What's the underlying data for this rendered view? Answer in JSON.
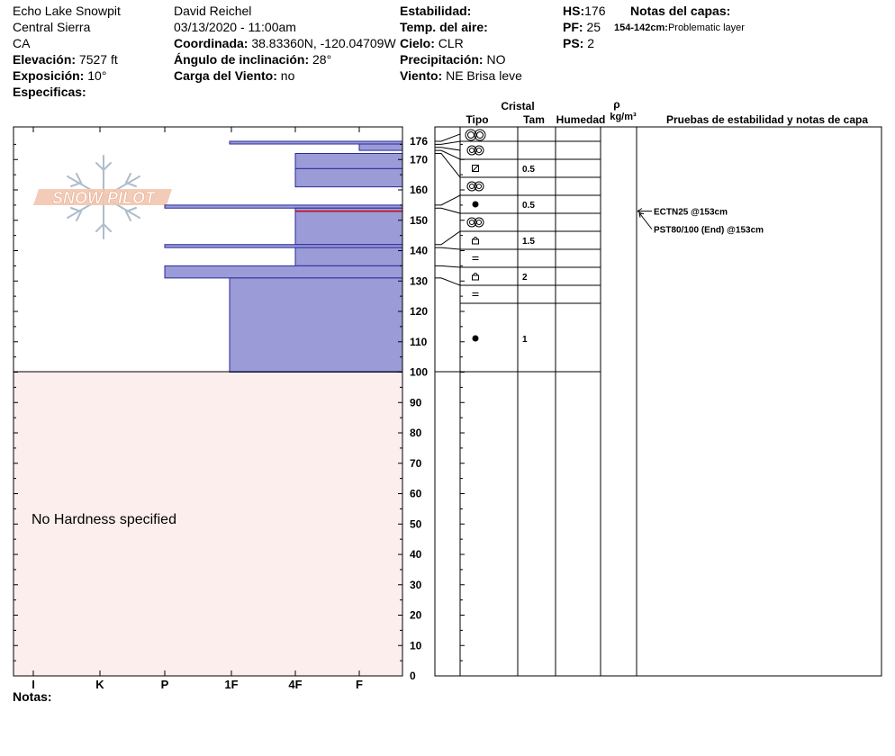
{
  "header": {
    "col1": {
      "location": "Echo Lake Snowpit",
      "region": "Central Sierra",
      "state": "CA",
      "elevation_label": "Elevación:",
      "elevation_value": "7527 ft",
      "aspect_label": "Exposición:",
      "aspect_value": "10°",
      "specifics_label": "Especificas:"
    },
    "col2": {
      "observer": "David Reichel",
      "datetime": "03/13/2020 - 11:00am",
      "coord_label": "Coordinada:",
      "coord_value": "38.83360N, -120.04709W",
      "slope_label": "Ángulo de inclinación:",
      "slope_value": "28°",
      "wind_load_label": "Carga del Viento:",
      "wind_load_value": "no"
    },
    "col3": {
      "stability_label": "Estabilidad:",
      "air_temp_label": "Temp. del aire:",
      "sky_label": "Cielo:",
      "sky_value": "CLR",
      "precip_label": "Precipitación:",
      "precip_value": "NO",
      "wind_label": "Viento:",
      "wind_value": "NE Brisa leve"
    },
    "col4": {
      "hs_label": "HS:",
      "hs_value": "176",
      "pf_label": "PF:",
      "pf_value": "25",
      "ps_label": "PS:",
      "ps_value": "2"
    },
    "layer_notes": {
      "title": "Notas del capas:",
      "range": "154-142cm:",
      "text": "Problematic layer"
    }
  },
  "logo_text": "SNOW PILOT",
  "hardness_panel": {
    "no_hardness_text": "No Hardness specified",
    "hardness_labels": [
      "I",
      "K",
      "P",
      "1F",
      "4F",
      "F"
    ]
  },
  "depth_axis": {
    "labels": [
      "176",
      "170",
      "160",
      "150",
      "140",
      "130",
      "120",
      "110",
      "100",
      "90",
      "80",
      "70",
      "60",
      "50",
      "40",
      "30",
      "20",
      "10",
      "0"
    ],
    "values": [
      176,
      170,
      160,
      150,
      140,
      130,
      120,
      110,
      100,
      90,
      80,
      70,
      60,
      50,
      40,
      30,
      20,
      10,
      0
    ]
  },
  "columns": {
    "crystal_title": "Cristal",
    "type": "Tipo",
    "size": "Tam",
    "moisture": "Humedad",
    "density_symbol": "ρ",
    "density_unit": "kg/m³",
    "tests": "Pruebas de estabilidad y notas de capa"
  },
  "layers": [
    {
      "top": 176,
      "bottom": 173,
      "hardness": "F",
      "type": "rounds",
      "size": ""
    },
    {
      "top": 172,
      "bottom": 167,
      "hardness": "4F",
      "type": "rounds",
      "size": ""
    },
    {
      "top": 167,
      "bottom": 161,
      "hardness": "4F",
      "type": "decomposing",
      "size": "0.5"
    },
    {
      "top": 155,
      "bottom": 154,
      "hardness": "P",
      "type": "rounds",
      "size": ""
    },
    {
      "top": 154,
      "bottom": 142,
      "hardness": "4F",
      "type": "graupel",
      "size": "0.5"
    },
    {
      "top": 142,
      "bottom": 141,
      "hardness": "P",
      "type": "rounds",
      "size": ""
    },
    {
      "top": 141,
      "bottom": 135,
      "hardness": "4F",
      "type": "faceted",
      "size": "1.5"
    },
    {
      "top": 135,
      "bottom": 131,
      "hardness": "P",
      "type": "crust",
      "size": ""
    },
    {
      "top": 131,
      "bottom": 100,
      "hardness": "1F",
      "type": "faceted",
      "size": "2"
    }
  ],
  "column_rows": [
    {
      "symbol": "rounds-large",
      "size": ""
    },
    {
      "symbol": "rounds",
      "size": ""
    },
    {
      "symbol": "decomposing",
      "size": "0.5"
    },
    {
      "symbol": "rounds",
      "size": ""
    },
    {
      "symbol": "graupel",
      "size": "0.5"
    },
    {
      "symbol": "rounds",
      "size": ""
    },
    {
      "symbol": "faceted",
      "size": "1.5"
    },
    {
      "symbol": "crust",
      "size": ""
    },
    {
      "symbol": "faceted",
      "size": "2"
    },
    {
      "symbol": "crust",
      "size": ""
    },
    {
      "symbol": "graupel",
      "size": "1"
    }
  ],
  "weak_layer_depth": 153,
  "tests": [
    {
      "text": "ECTN25 @153cm",
      "depth": 153
    },
    {
      "text": "PST80/100 (End) @153cm",
      "depth": 153
    }
  ],
  "notes_label": "Notas:",
  "colors": {
    "layer_fill": "#9b9bd8",
    "layer_stroke": "#2a2a9a",
    "weak_line": "#d40000",
    "no_hardness_bg": "#fdeeee"
  }
}
